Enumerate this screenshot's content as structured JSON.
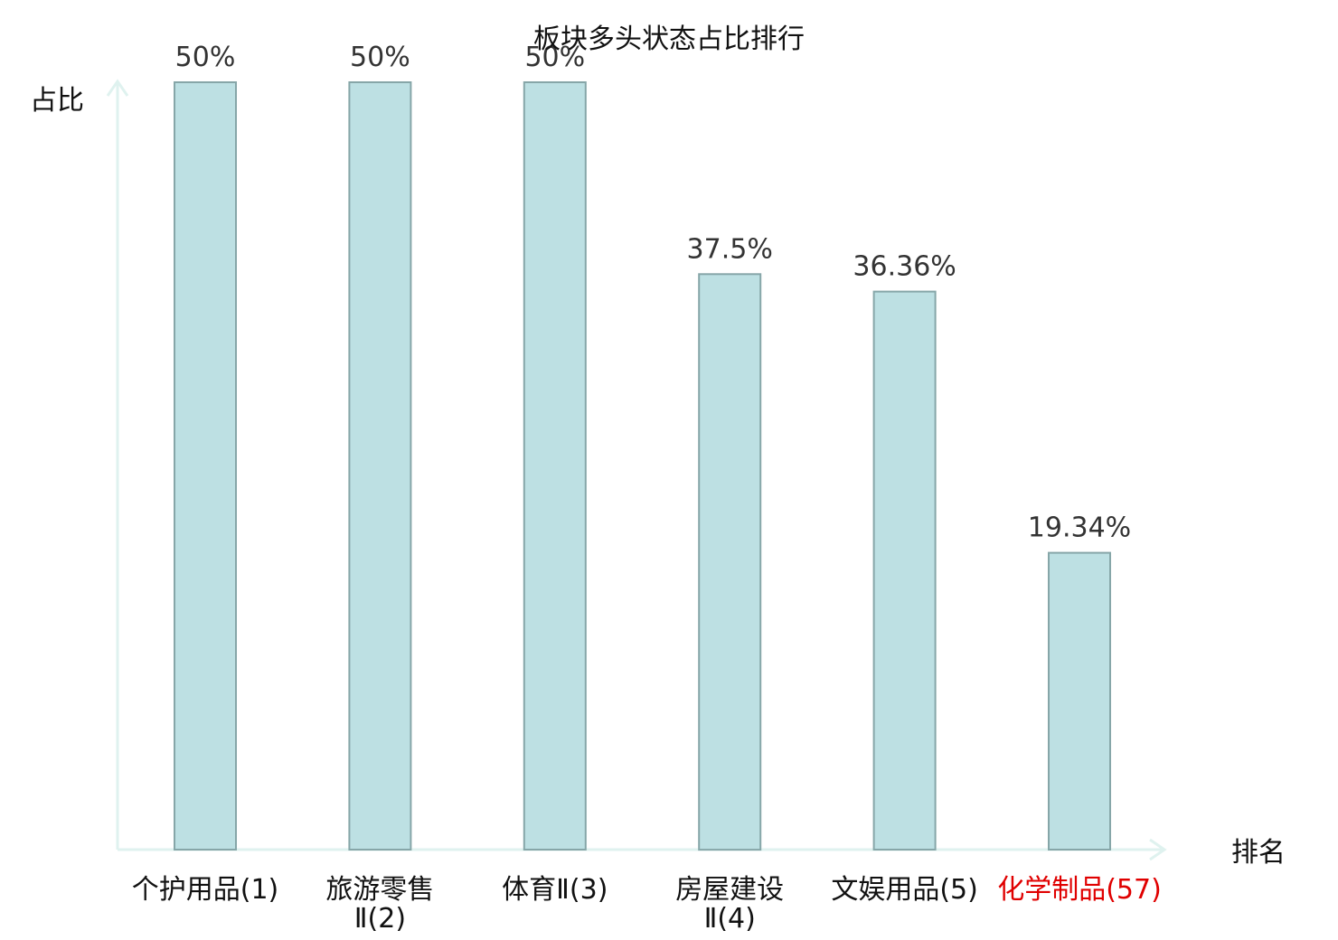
{
  "chart_data": {
    "type": "bar",
    "title": "板块多头状态占比排行",
    "xlabel": "排名",
    "ylabel": "占比",
    "categories": [
      {
        "lines": [
          "个护用品(1)"
        ],
        "highlight": false
      },
      {
        "lines": [
          "旅游零售",
          "Ⅱ(2)"
        ],
        "highlight": false
      },
      {
        "lines": [
          "体育Ⅱ(3)"
        ],
        "highlight": false
      },
      {
        "lines": [
          "房屋建设",
          "Ⅱ(4)"
        ],
        "highlight": false
      },
      {
        "lines": [
          "文娱用品(5)"
        ],
        "highlight": false
      },
      {
        "lines": [
          "化学制品(57)"
        ],
        "highlight": true
      }
    ],
    "values": [
      50,
      50,
      50,
      37.5,
      36.36,
      19.34
    ],
    "value_labels": [
      "50%",
      "50%",
      "50%",
      "37.5%",
      "36.36%",
      "19.34%"
    ],
    "ylim": [
      0,
      50
    ],
    "grid": false,
    "colors": {
      "bar_fill": "#bde0e3",
      "bar_stroke": "#86a6a8",
      "axis": "#dff2ef",
      "text": "#111111",
      "value_text": "#333333",
      "highlight": "#e00000"
    }
  }
}
